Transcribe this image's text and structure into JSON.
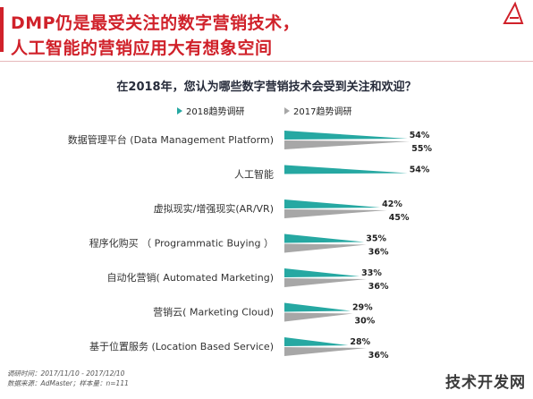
{
  "header": {
    "title_line1": "DMP仍是最受关注的数字营销技术，",
    "title_line2": "人工智能的营销应用大有想象空间",
    "question": "在2018年，您认为哪些数字营销技术会受到关注和欢迎？"
  },
  "footnotes": {
    "line1": "调研时间：2017/11/10 - 2017/12/10",
    "line2": "数据来源：AdMaster；样本量：n=111"
  },
  "watermark": "技术开发网",
  "colors": {
    "accent": "#d0212a",
    "series_2018": "#26a8a2",
    "series_2017": "#a7a7a7"
  },
  "chart_data": {
    "type": "bar",
    "orientation": "horizontal",
    "categories": [
      "数据管理平台 (Data Management Platform)",
      "人工智能",
      "虚拟现实/增强现实(AR/VR)",
      "程序化购买 （ Programmatic Buying ）",
      "自动化营销( Automated Marketing)",
      "营销云( Marketing Cloud)",
      "基于位置服务 (Location Based Service)"
    ],
    "series": [
      {
        "name": "2018趋势调研",
        "values": [
          54,
          54,
          42,
          35,
          33,
          29,
          28
        ],
        "labels": [
          "54%",
          "54%",
          "42%",
          "35%",
          "33%",
          "29%",
          "28%"
        ]
      },
      {
        "name": "2017趋势调研",
        "values": [
          55,
          null,
          45,
          36,
          36,
          30,
          36
        ],
        "labels": [
          "55%",
          "",
          "45%",
          "36%",
          "36%",
          "30%",
          "36%"
        ]
      }
    ],
    "xlim": [
      0,
      60
    ],
    "grid": false,
    "legend": "top-center"
  }
}
